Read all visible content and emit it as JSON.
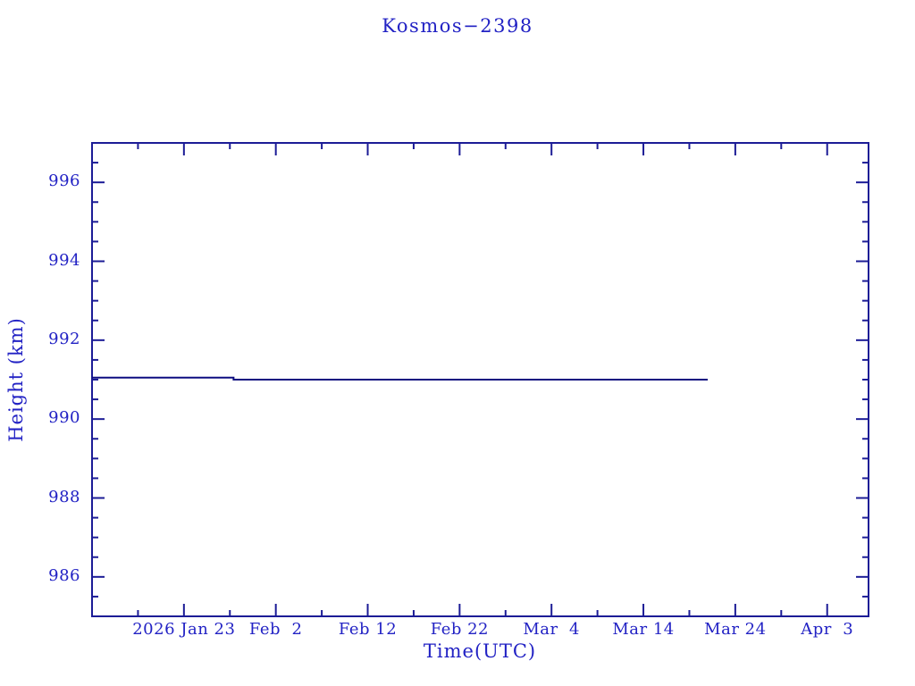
{
  "title": "Kosmos−2398",
  "colors": {
    "background": "#ffffff",
    "text": "#2222c4",
    "axis": "#1c1c96",
    "line": "#0d0d80"
  },
  "chart_data": {
    "type": "line",
    "title": "Kosmos−2398",
    "xlabel": "Time(UTC)",
    "ylabel": "Height (km)",
    "x_unit": "days since 2026 Jan 13",
    "xlim": [
      0,
      84.5
    ],
    "ylim": [
      985,
      997
    ],
    "grid": false,
    "legend": false,
    "x_major_ticks": [
      {
        "pos": 10,
        "label": "2026 Jan 23"
      },
      {
        "pos": 20,
        "label": "Feb  2"
      },
      {
        "pos": 30,
        "label": "Feb 12"
      },
      {
        "pos": 40,
        "label": "Feb 22"
      },
      {
        "pos": 50,
        "label": "Mar  4"
      },
      {
        "pos": 60,
        "label": "Mar 14"
      },
      {
        "pos": 70,
        "label": "Mar 24"
      },
      {
        "pos": 80,
        "label": "Apr  3"
      }
    ],
    "x_minor_tick_positions": [
      5,
      15,
      25,
      35,
      45,
      55,
      65,
      75
    ],
    "y_major_ticks": [
      {
        "pos": 986,
        "label": "986"
      },
      {
        "pos": 988,
        "label": "988"
      },
      {
        "pos": 990,
        "label": "990"
      },
      {
        "pos": 992,
        "label": "992"
      },
      {
        "pos": 994,
        "label": "994"
      },
      {
        "pos": 996,
        "label": "996"
      }
    ],
    "y_minor_step": 0.5,
    "series": [
      {
        "name": "height",
        "points": [
          [
            0,
            991.05
          ],
          [
            15.4,
            991.05
          ],
          [
            15.4,
            991.0
          ],
          [
            67,
            991.0
          ]
        ]
      }
    ]
  }
}
